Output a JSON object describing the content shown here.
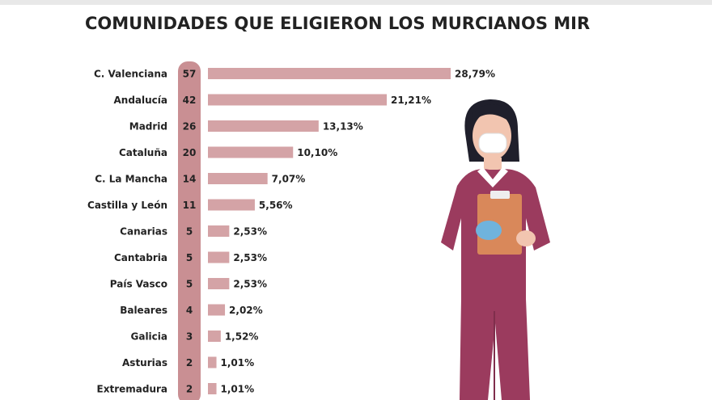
{
  "chart_data": {
    "type": "bar",
    "orientation": "horizontal",
    "title": "COMUNIDADES QUE ELIGIERON LOS MURCIANOS MIR",
    "categories": [
      "C. Valenciana",
      "Andalucía",
      "Madrid",
      "Cataluña",
      "C. La Mancha",
      "Castilla y León",
      "Canarias",
      "Cantabria",
      "País Vasco",
      "Baleares",
      "Galicia",
      "Asturias",
      "Extremadura"
    ],
    "counts": [
      57,
      42,
      26,
      20,
      14,
      11,
      5,
      5,
      5,
      4,
      3,
      2,
      2
    ],
    "values": [
      28.79,
      21.21,
      13.13,
      10.1,
      7.07,
      5.56,
      2.53,
      2.53,
      2.53,
      2.02,
      1.52,
      1.01,
      1.01
    ],
    "value_labels": [
      "28,79%",
      "21,21%",
      "13,13%",
      "10,10%",
      "7,07%",
      "5,56%",
      "2,53%",
      "2,53%",
      "2,53%",
      "2,02%",
      "1,52%",
      "1,01%",
      "1,01%"
    ],
    "color": "#d4a3a6"
  }
}
